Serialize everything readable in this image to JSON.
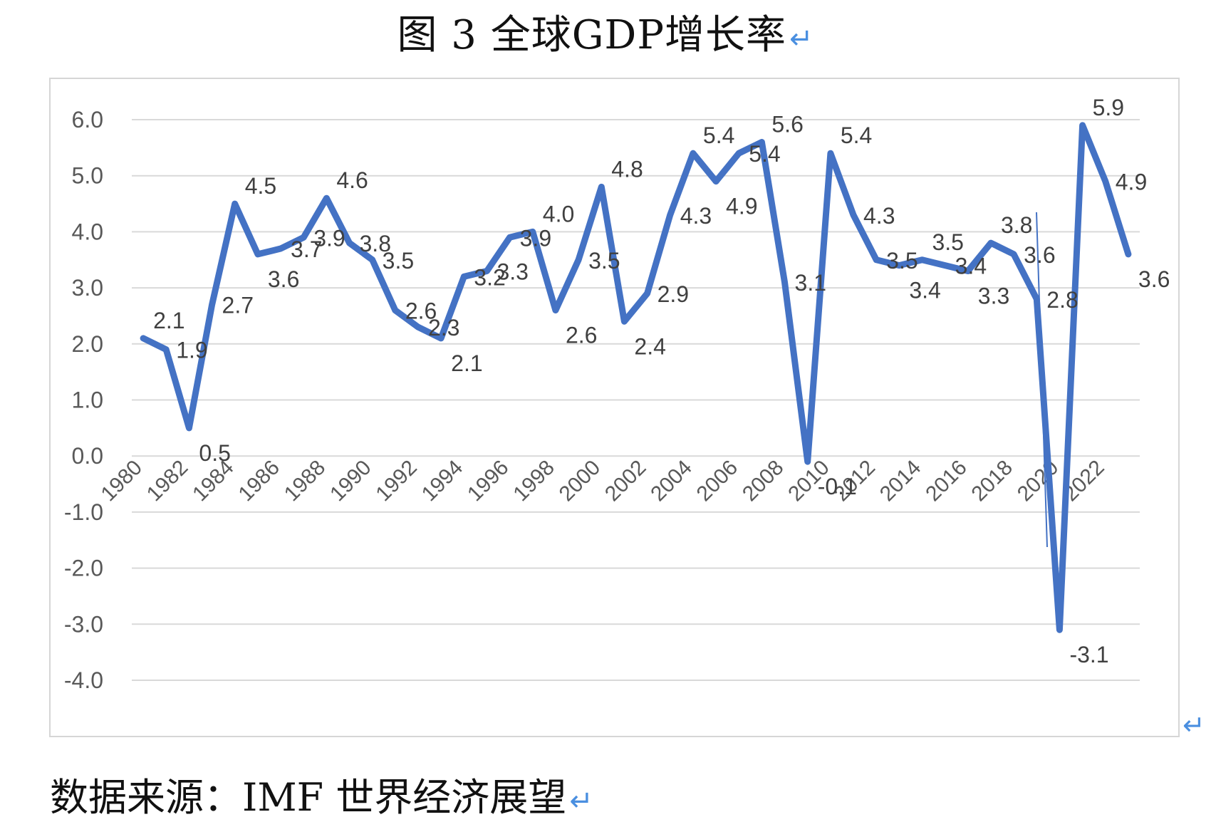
{
  "document": {
    "title": "图 3 全球GDP增长率",
    "title_mark": "↵",
    "source": "数据来源：IMF 世界经济展望",
    "source_mark": "↵",
    "para_mark": "↵"
  },
  "chart_data": {
    "type": "line",
    "title": "",
    "xlabel": "",
    "ylabel": "",
    "ylim": [
      -4.0,
      6.0
    ],
    "y_ticks": [
      "-4.0",
      "-3.0",
      "-2.0",
      "-1.0",
      "0.0",
      "1.0",
      "2.0",
      "3.0",
      "4.0",
      "5.0",
      "6.0"
    ],
    "x_tick_labels": [
      "1980",
      "1982",
      "1984",
      "1986",
      "1988",
      "1990",
      "1992",
      "1994",
      "1996",
      "1998",
      "2000",
      "2002",
      "2004",
      "2006",
      "2008",
      "2010",
      "2012",
      "2014",
      "2016",
      "2018",
      "2020",
      "2022"
    ],
    "grid": true,
    "legend": "none",
    "line_color": "#4472c4",
    "x": [
      1980,
      1981,
      1982,
      1983,
      1984,
      1985,
      1986,
      1987,
      1988,
      1989,
      1990,
      1991,
      1992,
      1993,
      1994,
      1995,
      1996,
      1997,
      1998,
      1999,
      2000,
      2001,
      2002,
      2003,
      2004,
      2005,
      2006,
      2007,
      2008,
      2009,
      2010,
      2011,
      2012,
      2013,
      2014,
      2015,
      2016,
      2017,
      2018,
      2019,
      2020,
      2021,
      2022,
      2023
    ],
    "series": [
      {
        "values": [
          2.1,
          1.9,
          0.5,
          2.7,
          4.5,
          3.6,
          3.7,
          3.9,
          4.6,
          3.8,
          3.5,
          2.6,
          2.3,
          2.1,
          3.2,
          3.3,
          3.9,
          4.0,
          2.6,
          3.5,
          4.8,
          2.4,
          2.9,
          4.3,
          5.4,
          4.9,
          5.4,
          5.6,
          3.1,
          -0.1,
          5.4,
          4.3,
          3.5,
          3.4,
          3.5,
          3.4,
          3.3,
          3.8,
          3.6,
          2.8,
          -3.1,
          5.9,
          4.9,
          3.6
        ],
        "labels": [
          "2.1",
          "1.9",
          "0.5",
          "2.7",
          "4.5",
          "3.6",
          "3.7",
          "3.9",
          "4.6",
          "3.8",
          "3.5",
          "2.6",
          "2.3",
          "2.1",
          "3.2",
          "3.3",
          "3.9",
          "4.0",
          "2.6",
          "3.5",
          "4.8",
          "2.4",
          "2.9",
          "4.3",
          "5.4",
          "4.9",
          "5.4",
          "5.6",
          "3.1",
          "-0.1",
          "5.4",
          "4.3",
          "3.5",
          "3.4",
          "3.5",
          "3.4",
          "3.3",
          "3.8",
          "3.6",
          "2.8",
          "-3.1",
          "5.9",
          "4.9",
          "3.6"
        ]
      }
    ]
  }
}
